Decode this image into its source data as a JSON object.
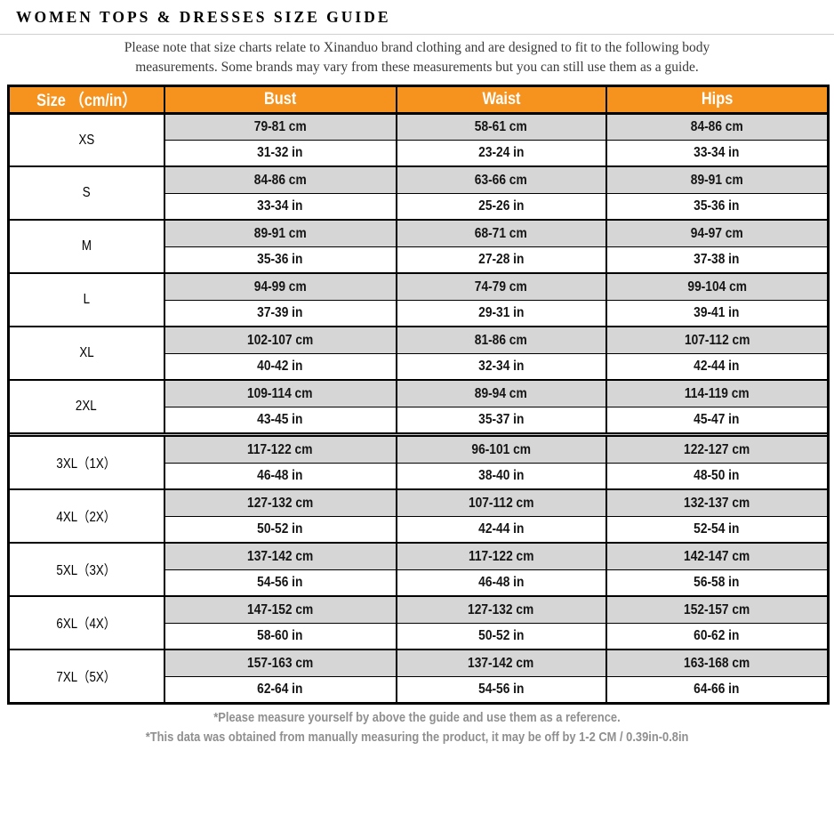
{
  "page": {
    "title": "WOMEN TOPS & DRESSES SIZE GUIDE",
    "note": "Please note that size charts relate to  Xinanduo brand clothing and are designed to fit to the following body\nmeasurements. Some brands may vary from these measurements but you can still use them as a guide."
  },
  "colors": {
    "header_bg": "#F6921E",
    "header_text": "#FFFFFF",
    "cm_row_bg": "#D6D6D6",
    "in_row_bg": "#FFFFFF",
    "border": "#000000",
    "divider_gap": "#C9C9C9",
    "note_text": "#3A3A3A",
    "footer_text": "#8F8F8F"
  },
  "table": {
    "headers": [
      "Size （cm/in）",
      "Bust",
      "Waist",
      "Hips"
    ],
    "groups": [
      {
        "size": "XS",
        "cm": {
          "bust": "79-81 cm",
          "waist": "58-61 cm",
          "hips": "84-86 cm"
        },
        "in": {
          "bust": "31-32 in",
          "waist": "23-24 in",
          "hips": "33-34 in"
        }
      },
      {
        "size": "S",
        "cm": {
          "bust": "84-86 cm",
          "waist": "63-66 cm",
          "hips": "89-91 cm"
        },
        "in": {
          "bust": "33-34 in",
          "waist": "25-26 in",
          "hips": "35-36 in"
        }
      },
      {
        "size": "M",
        "cm": {
          "bust": "89-91 cm",
          "waist": "68-71 cm",
          "hips": "94-97 cm"
        },
        "in": {
          "bust": "35-36 in",
          "waist": "27-28 in",
          "hips": "37-38 in"
        }
      },
      {
        "size": "L",
        "cm": {
          "bust": "94-99 cm",
          "waist": "74-79 cm",
          "hips": "99-104 cm"
        },
        "in": {
          "bust": "37-39 in",
          "waist": "29-31 in",
          "hips": "39-41 in"
        }
      },
      {
        "size": "XL",
        "cm": {
          "bust": "102-107 cm",
          "waist": "81-86 cm",
          "hips": "107-112 cm"
        },
        "in": {
          "bust": "40-42 in",
          "waist": "32-34 in",
          "hips": "42-44 in"
        }
      },
      {
        "size": "2XL",
        "cm": {
          "bust": "109-114 cm",
          "waist": "89-94 cm",
          "hips": "114-119 cm"
        },
        "in": {
          "bust": "43-45 in",
          "waist": "35-37 in",
          "hips": "45-47 in"
        },
        "divider_after": true
      },
      {
        "size": "3XL（1X）",
        "cm": {
          "bust": "117-122 cm",
          "waist": "96-101 cm",
          "hips": "122-127 cm"
        },
        "in": {
          "bust": "46-48 in",
          "waist": "38-40 in",
          "hips": "48-50 in"
        }
      },
      {
        "size": "4XL（2X）",
        "cm": {
          "bust": "127-132 cm",
          "waist": "107-112 cm",
          "hips": "132-137 cm"
        },
        "in": {
          "bust": "50-52 in",
          "waist": "42-44 in",
          "hips": "52-54 in"
        }
      },
      {
        "size": "5XL（3X）",
        "cm": {
          "bust": "137-142 cm",
          "waist": "117-122 cm",
          "hips": "142-147 cm"
        },
        "in": {
          "bust": "54-56 in",
          "waist": "46-48 in",
          "hips": "56-58 in"
        }
      },
      {
        "size": "6XL（4X）",
        "cm": {
          "bust": "147-152 cm",
          "waist": "127-132 cm",
          "hips": "152-157 cm"
        },
        "in": {
          "bust": "58-60 in",
          "waist": "50-52 in",
          "hips": "60-62 in"
        }
      },
      {
        "size": "7XL（5X）",
        "cm": {
          "bust": "157-163 cm",
          "waist": "137-142 cm",
          "hips": "163-168 cm"
        },
        "in": {
          "bust": "62-64 in",
          "waist": "54-56 in",
          "hips": "64-66 in"
        }
      }
    ]
  },
  "footer": {
    "line1": "*Please measure yourself by above the guide and use them as a reference.",
    "line2": "*This data was obtained from manually measuring the product, it may be off by 1-2 CM / 0.39in-0.8in"
  }
}
